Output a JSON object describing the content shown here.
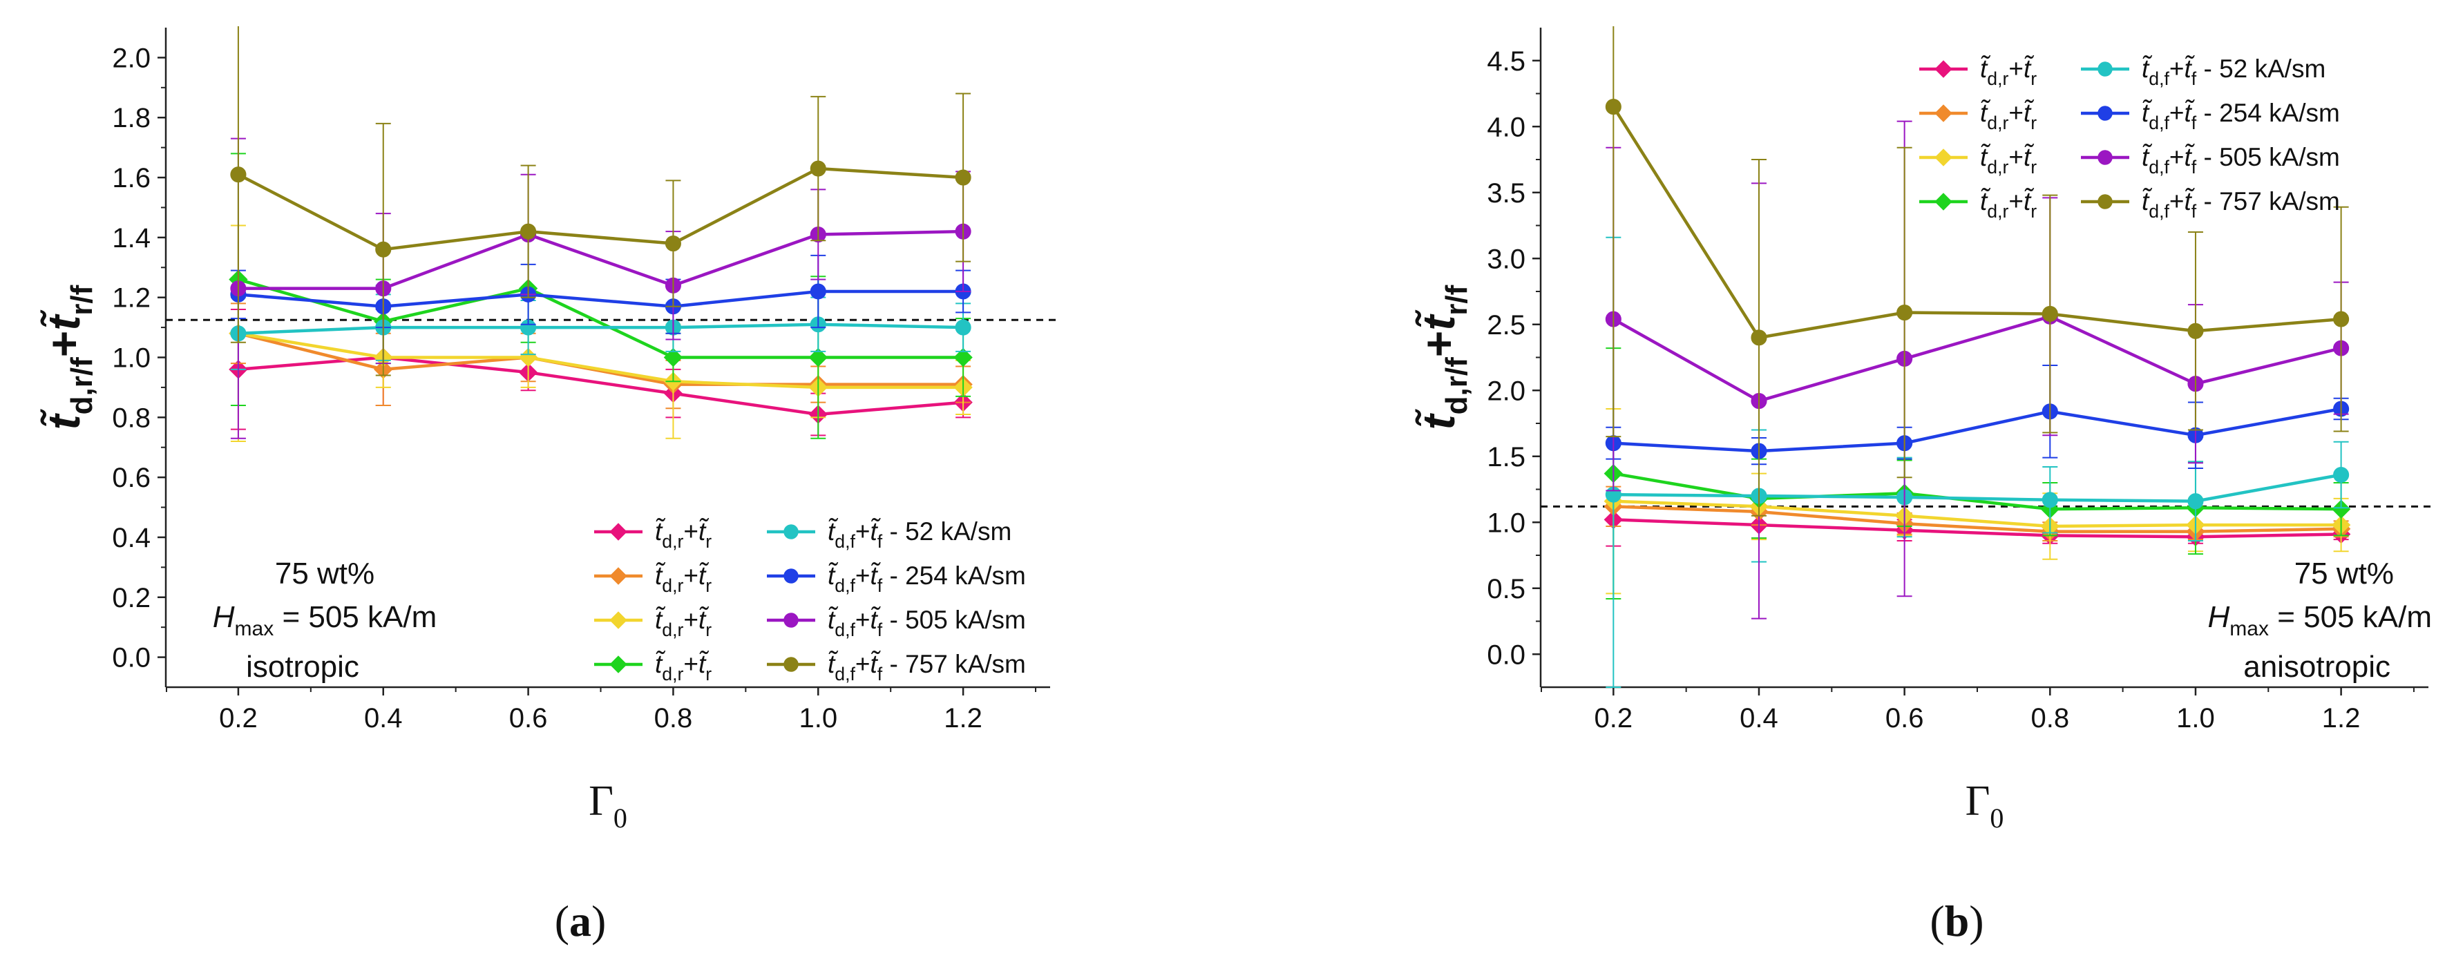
{
  "chart_data": [
    {
      "id": "a",
      "panel_label": "(a)",
      "type": "line",
      "xlabel": "Γ0",
      "ylabel": "t̃d,r/f+t̃r/f",
      "x": [
        0.2,
        0.4,
        0.6,
        0.8,
        1.0,
        1.2
      ],
      "xticks": [
        "0.2",
        "0.4",
        "0.6",
        "0.8",
        "1.0",
        "1.2"
      ],
      "xlim": [
        0.1,
        1.32
      ],
      "yticks": [
        "0.0",
        "0.2",
        "0.4",
        "0.6",
        "0.8",
        "1.0",
        "1.2",
        "1.4",
        "1.6",
        "1.8",
        "2.0"
      ],
      "ylim": [
        -0.1,
        2.1
      ],
      "reference_line": 1.125,
      "annotation": {
        "concentration": "75 wt%",
        "h_symbol": "H",
        "h_sub": "max",
        "h_value": "= 505 kA/m",
        "structure": "isotropic"
      },
      "legend_position": "bottom-right",
      "series": [
        {
          "legend_main": "t̃d,r+t̃r",
          "legend_suffix": "",
          "color": "#e8127c",
          "marker": "diamond",
          "values": [
            0.96,
            1.0,
            0.95,
            0.88,
            0.81,
            0.85
          ],
          "errors": [
            0.2,
            0.16,
            0.06,
            0.08,
            0.07,
            0.05
          ]
        },
        {
          "legend_main": "t̃d,r+t̃r",
          "legend_suffix": "",
          "color": "#f08a2c",
          "marker": "diamond",
          "values": [
            1.08,
            0.96,
            1.0,
            0.91,
            0.91,
            0.91
          ],
          "errors": [
            0.1,
            0.12,
            0.08,
            0.08,
            0.06,
            0.06
          ]
        },
        {
          "legend_main": "t̃d,r+t̃r",
          "legend_suffix": "",
          "color": "#f2d52e",
          "marker": "diamond",
          "values": [
            1.08,
            1.0,
            1.0,
            0.92,
            0.9,
            0.9
          ],
          "errors": [
            0.36,
            0.1,
            0.1,
            0.19,
            0.1,
            0.09
          ]
        },
        {
          "legend_main": "t̃d,r+t̃r",
          "legend_suffix": "",
          "color": "#1ed41e",
          "marker": "diamond",
          "values": [
            1.26,
            1.12,
            1.23,
            1.0,
            1.0,
            1.0
          ],
          "errors": [
            0.42,
            0.14,
            0.18,
            0.08,
            0.27,
            0.13
          ]
        },
        {
          "legend_main": "t̃d,f+t̃f",
          "legend_suffix": " -  52 kA/sm",
          "color": "#22c3c3",
          "marker": "circle",
          "values": [
            1.08,
            1.1,
            1.1,
            1.1,
            1.11,
            1.1
          ],
          "errors": [
            0.12,
            0.11,
            0.09,
            0.08,
            0.09,
            0.08
          ]
        },
        {
          "legend_main": "t̃d,f+t̃f",
          "legend_suffix": " - 254 kA/sm",
          "color": "#1f3fe6",
          "marker": "circle",
          "values": [
            1.21,
            1.17,
            1.21,
            1.17,
            1.22,
            1.22
          ],
          "errors": [
            0.08,
            0.07,
            0.1,
            0.09,
            0.12,
            0.07
          ]
        },
        {
          "legend_main": "t̃d,f+t̃f",
          "legend_suffix": " - 505 kA/sm",
          "color": "#9b16c2",
          "marker": "circle",
          "values": [
            1.23,
            1.23,
            1.41,
            1.24,
            1.41,
            1.42
          ],
          "errors": [
            0.5,
            0.25,
            0.2,
            0.18,
            0.15,
            0.2
          ]
        },
        {
          "legend_main": "t̃d,f+t̃f",
          "legend_suffix": " - 757 kA/sm",
          "color": "#8b8216",
          "marker": "circle",
          "values": [
            1.61,
            1.36,
            1.42,
            1.38,
            1.63,
            1.6
          ],
          "errors": [
            0.56,
            0.42,
            0.22,
            0.21,
            0.24,
            0.28
          ]
        }
      ]
    },
    {
      "id": "b",
      "panel_label": "(b)",
      "type": "line",
      "xlabel": "Γ0",
      "ylabel": "t̃d,r/f+t̃r/f",
      "x": [
        0.2,
        0.4,
        0.6,
        0.8,
        1.0,
        1.2
      ],
      "xticks": [
        "0.2",
        "0.4",
        "0.6",
        "0.8",
        "1.0",
        "1.2"
      ],
      "xlim": [
        0.1,
        1.32
      ],
      "yticks": [
        "0.0",
        "0.5",
        "1.0",
        "1.5",
        "2.0",
        "2.5",
        "3.0",
        "3.5",
        "4.0",
        "4.5"
      ],
      "ylim": [
        -0.25,
        4.75
      ],
      "reference_line": 1.12,
      "annotation": {
        "concentration": "75 wt%",
        "h_symbol": "H",
        "h_sub": "max",
        "h_value": "= 505 kA/m",
        "structure": "anisotropic"
      },
      "legend_position": "top-right",
      "series": [
        {
          "legend_main": "t̃d,r+t̃r",
          "legend_suffix": "",
          "color": "#e8127c",
          "marker": "diamond",
          "values": [
            1.02,
            0.98,
            0.94,
            0.9,
            0.89,
            0.91
          ],
          "errors": [
            0.2,
            0.1,
            0.08,
            0.06,
            0.05,
            0.04
          ]
        },
        {
          "legend_main": "t̃d,r+t̃r",
          "legend_suffix": "",
          "color": "#f08a2c",
          "marker": "diamond",
          "values": [
            1.12,
            1.08,
            0.99,
            0.93,
            0.93,
            0.95
          ],
          "errors": [
            0.15,
            0.1,
            0.08,
            0.07,
            0.06,
            0.06
          ]
        },
        {
          "legend_main": "t̃d,r+t̃r",
          "legend_suffix": "",
          "color": "#f2d52e",
          "marker": "diamond",
          "values": [
            1.16,
            1.12,
            1.05,
            0.97,
            0.98,
            0.98
          ],
          "errors": [
            0.7,
            0.25,
            0.15,
            0.25,
            0.2,
            0.2
          ]
        },
        {
          "legend_main": "t̃d,r+t̃r",
          "legend_suffix": "",
          "color": "#1ed41e",
          "marker": "diamond",
          "values": [
            1.37,
            1.18,
            1.22,
            1.1,
            1.11,
            1.1
          ],
          "errors": [
            0.95,
            0.3,
            0.25,
            0.2,
            0.35,
            0.2
          ]
        },
        {
          "legend_main": "t̃d,f+t̃f",
          "legend_suffix": " -  52 kA/sm",
          "color": "#22c3c3",
          "marker": "circle",
          "values": [
            1.21,
            1.2,
            1.19,
            1.17,
            1.16,
            1.36
          ],
          "errors": [
            1.95,
            0.5,
            0.3,
            0.25,
            0.3,
            0.25
          ]
        },
        {
          "legend_main": "t̃d,f+t̃f",
          "legend_suffix": " - 254 kA/sm",
          "color": "#1f3fe6",
          "marker": "circle",
          "values": [
            1.6,
            1.54,
            1.6,
            1.84,
            1.66,
            1.86
          ],
          "errors": [
            0.12,
            0.1,
            0.12,
            0.35,
            0.25,
            0.08
          ]
        },
        {
          "legend_main": "t̃d,f+t̃f",
          "legend_suffix": " - 505 kA/sm",
          "color": "#9b16c2",
          "marker": "circle",
          "values": [
            2.54,
            1.92,
            2.24,
            2.56,
            2.05,
            2.32
          ],
          "errors": [
            1.3,
            1.65,
            1.8,
            0.9,
            0.6,
            0.5
          ]
        },
        {
          "legend_main": "t̃d,f+t̃f",
          "legend_suffix": " - 757 kA/sm",
          "color": "#8b8216",
          "marker": "circle",
          "values": [
            4.15,
            2.4,
            2.59,
            2.58,
            2.45,
            2.54
          ],
          "errors": [
            2.5,
            1.35,
            1.25,
            0.9,
            0.75,
            0.85
          ]
        }
      ]
    }
  ]
}
